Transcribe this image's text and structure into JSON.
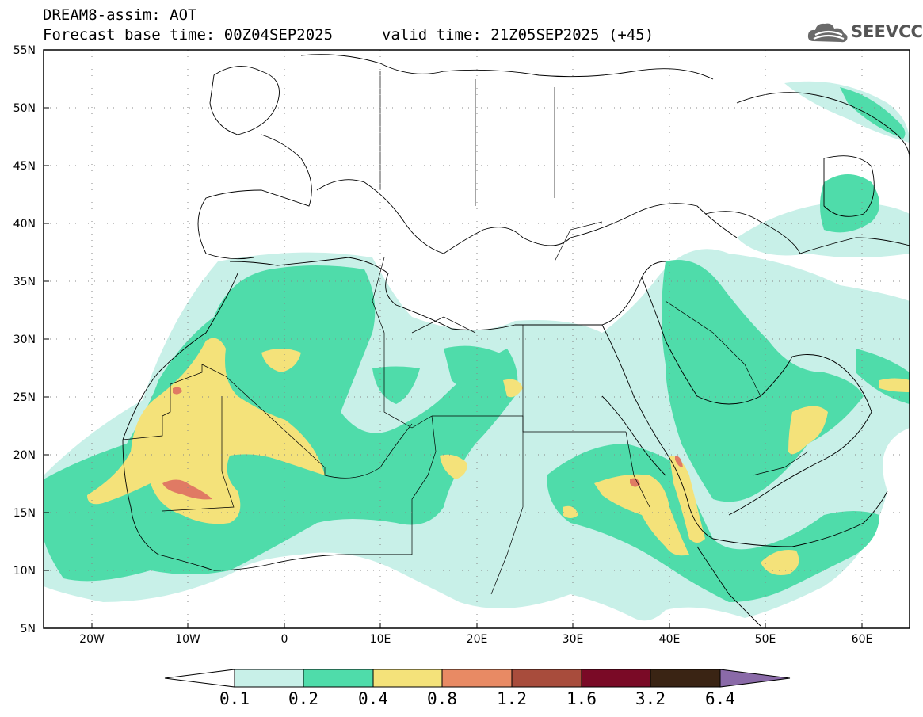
{
  "title": {
    "line1": "DREAM8-assim: AOT",
    "base_time": "Forecast base time: 00Z04SEP2025",
    "valid_time": "valid time: 21Z05SEP2025 (+45)"
  },
  "logo": {
    "text": "SEEVCCC",
    "icon": "cloud-icon"
  },
  "axes": {
    "lat_labels": [
      "55N",
      "50N",
      "45N",
      "40N",
      "35N",
      "30N",
      "25N",
      "20N",
      "15N",
      "10N",
      "5N"
    ],
    "lon_labels": [
      "20W",
      "10W",
      "0",
      "10E",
      "20E",
      "30E",
      "40E",
      "50E",
      "60E"
    ],
    "lat_range": [
      5,
      55
    ],
    "lon_range": [
      -25,
      65
    ],
    "grid": "dotted"
  },
  "colorbar": {
    "labels": [
      "0.1",
      "0.2",
      "0.4",
      "0.8",
      "1.2",
      "1.6",
      "3.2",
      "6.4"
    ],
    "colors": [
      "#ffffff",
      "#c8f0e8",
      "#4fdcaa",
      "#f4e27a",
      "#e88a64",
      "#a84c3c",
      "#7a0a26",
      "#3a2414",
      "#8a6aa8"
    ]
  },
  "map_colors": {
    "low": "#c8f0e8",
    "mid": "#4fdcaa",
    "high": "#f4e27a",
    "peak": "#e07a64",
    "border": "#000000"
  }
}
